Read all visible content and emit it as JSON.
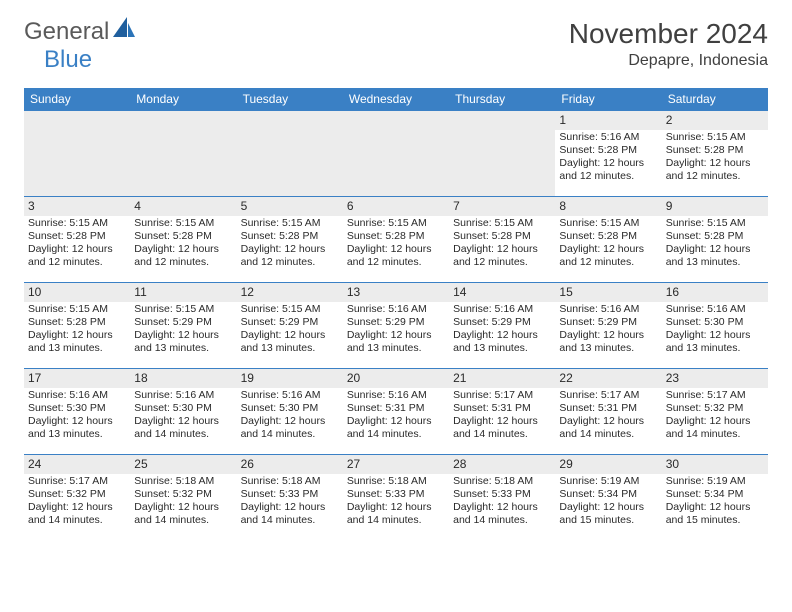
{
  "logo": {
    "general": "General",
    "blue": "Blue"
  },
  "title": "November 2024",
  "location": "Depapre, Indonesia",
  "weekdays": [
    "Sunday",
    "Monday",
    "Tuesday",
    "Wednesday",
    "Thursday",
    "Friday",
    "Saturday"
  ],
  "colors": {
    "header_bg": "#3a80c5",
    "header_text": "#ffffff",
    "border": "#3a80c5",
    "logo_gray": "#5a5a5a",
    "logo_blue": "#3a80c5",
    "text": "#2a2a2a",
    "gray_bg": "#ececec"
  },
  "weeks": [
    [
      null,
      null,
      null,
      null,
      null,
      {
        "day": "1",
        "sunrise": "Sunrise: 5:16 AM",
        "sunset": "Sunset: 5:28 PM",
        "daylight1": "Daylight: 12 hours",
        "daylight2": "and 12 minutes."
      },
      {
        "day": "2",
        "sunrise": "Sunrise: 5:15 AM",
        "sunset": "Sunset: 5:28 PM",
        "daylight1": "Daylight: 12 hours",
        "daylight2": "and 12 minutes."
      }
    ],
    [
      {
        "day": "3",
        "sunrise": "Sunrise: 5:15 AM",
        "sunset": "Sunset: 5:28 PM",
        "daylight1": "Daylight: 12 hours",
        "daylight2": "and 12 minutes."
      },
      {
        "day": "4",
        "sunrise": "Sunrise: 5:15 AM",
        "sunset": "Sunset: 5:28 PM",
        "daylight1": "Daylight: 12 hours",
        "daylight2": "and 12 minutes."
      },
      {
        "day": "5",
        "sunrise": "Sunrise: 5:15 AM",
        "sunset": "Sunset: 5:28 PM",
        "daylight1": "Daylight: 12 hours",
        "daylight2": "and 12 minutes."
      },
      {
        "day": "6",
        "sunrise": "Sunrise: 5:15 AM",
        "sunset": "Sunset: 5:28 PM",
        "daylight1": "Daylight: 12 hours",
        "daylight2": "and 12 minutes."
      },
      {
        "day": "7",
        "sunrise": "Sunrise: 5:15 AM",
        "sunset": "Sunset: 5:28 PM",
        "daylight1": "Daylight: 12 hours",
        "daylight2": "and 12 minutes."
      },
      {
        "day": "8",
        "sunrise": "Sunrise: 5:15 AM",
        "sunset": "Sunset: 5:28 PM",
        "daylight1": "Daylight: 12 hours",
        "daylight2": "and 12 minutes."
      },
      {
        "day": "9",
        "sunrise": "Sunrise: 5:15 AM",
        "sunset": "Sunset: 5:28 PM",
        "daylight1": "Daylight: 12 hours",
        "daylight2": "and 13 minutes."
      }
    ],
    [
      {
        "day": "10",
        "sunrise": "Sunrise: 5:15 AM",
        "sunset": "Sunset: 5:28 PM",
        "daylight1": "Daylight: 12 hours",
        "daylight2": "and 13 minutes."
      },
      {
        "day": "11",
        "sunrise": "Sunrise: 5:15 AM",
        "sunset": "Sunset: 5:29 PM",
        "daylight1": "Daylight: 12 hours",
        "daylight2": "and 13 minutes."
      },
      {
        "day": "12",
        "sunrise": "Sunrise: 5:15 AM",
        "sunset": "Sunset: 5:29 PM",
        "daylight1": "Daylight: 12 hours",
        "daylight2": "and 13 minutes."
      },
      {
        "day": "13",
        "sunrise": "Sunrise: 5:16 AM",
        "sunset": "Sunset: 5:29 PM",
        "daylight1": "Daylight: 12 hours",
        "daylight2": "and 13 minutes."
      },
      {
        "day": "14",
        "sunrise": "Sunrise: 5:16 AM",
        "sunset": "Sunset: 5:29 PM",
        "daylight1": "Daylight: 12 hours",
        "daylight2": "and 13 minutes."
      },
      {
        "day": "15",
        "sunrise": "Sunrise: 5:16 AM",
        "sunset": "Sunset: 5:29 PM",
        "daylight1": "Daylight: 12 hours",
        "daylight2": "and 13 minutes."
      },
      {
        "day": "16",
        "sunrise": "Sunrise: 5:16 AM",
        "sunset": "Sunset: 5:30 PM",
        "daylight1": "Daylight: 12 hours",
        "daylight2": "and 13 minutes."
      }
    ],
    [
      {
        "day": "17",
        "sunrise": "Sunrise: 5:16 AM",
        "sunset": "Sunset: 5:30 PM",
        "daylight1": "Daylight: 12 hours",
        "daylight2": "and 13 minutes."
      },
      {
        "day": "18",
        "sunrise": "Sunrise: 5:16 AM",
        "sunset": "Sunset: 5:30 PM",
        "daylight1": "Daylight: 12 hours",
        "daylight2": "and 14 minutes."
      },
      {
        "day": "19",
        "sunrise": "Sunrise: 5:16 AM",
        "sunset": "Sunset: 5:30 PM",
        "daylight1": "Daylight: 12 hours",
        "daylight2": "and 14 minutes."
      },
      {
        "day": "20",
        "sunrise": "Sunrise: 5:16 AM",
        "sunset": "Sunset: 5:31 PM",
        "daylight1": "Daylight: 12 hours",
        "daylight2": "and 14 minutes."
      },
      {
        "day": "21",
        "sunrise": "Sunrise: 5:17 AM",
        "sunset": "Sunset: 5:31 PM",
        "daylight1": "Daylight: 12 hours",
        "daylight2": "and 14 minutes."
      },
      {
        "day": "22",
        "sunrise": "Sunrise: 5:17 AM",
        "sunset": "Sunset: 5:31 PM",
        "daylight1": "Daylight: 12 hours",
        "daylight2": "and 14 minutes."
      },
      {
        "day": "23",
        "sunrise": "Sunrise: 5:17 AM",
        "sunset": "Sunset: 5:32 PM",
        "daylight1": "Daylight: 12 hours",
        "daylight2": "and 14 minutes."
      }
    ],
    [
      {
        "day": "24",
        "sunrise": "Sunrise: 5:17 AM",
        "sunset": "Sunset: 5:32 PM",
        "daylight1": "Daylight: 12 hours",
        "daylight2": "and 14 minutes."
      },
      {
        "day": "25",
        "sunrise": "Sunrise: 5:18 AM",
        "sunset": "Sunset: 5:32 PM",
        "daylight1": "Daylight: 12 hours",
        "daylight2": "and 14 minutes."
      },
      {
        "day": "26",
        "sunrise": "Sunrise: 5:18 AM",
        "sunset": "Sunset: 5:33 PM",
        "daylight1": "Daylight: 12 hours",
        "daylight2": "and 14 minutes."
      },
      {
        "day": "27",
        "sunrise": "Sunrise: 5:18 AM",
        "sunset": "Sunset: 5:33 PM",
        "daylight1": "Daylight: 12 hours",
        "daylight2": "and 14 minutes."
      },
      {
        "day": "28",
        "sunrise": "Sunrise: 5:18 AM",
        "sunset": "Sunset: 5:33 PM",
        "daylight1": "Daylight: 12 hours",
        "daylight2": "and 14 minutes."
      },
      {
        "day": "29",
        "sunrise": "Sunrise: 5:19 AM",
        "sunset": "Sunset: 5:34 PM",
        "daylight1": "Daylight: 12 hours",
        "daylight2": "and 15 minutes."
      },
      {
        "day": "30",
        "sunrise": "Sunrise: 5:19 AM",
        "sunset": "Sunset: 5:34 PM",
        "daylight1": "Daylight: 12 hours",
        "daylight2": "and 15 minutes."
      }
    ]
  ]
}
